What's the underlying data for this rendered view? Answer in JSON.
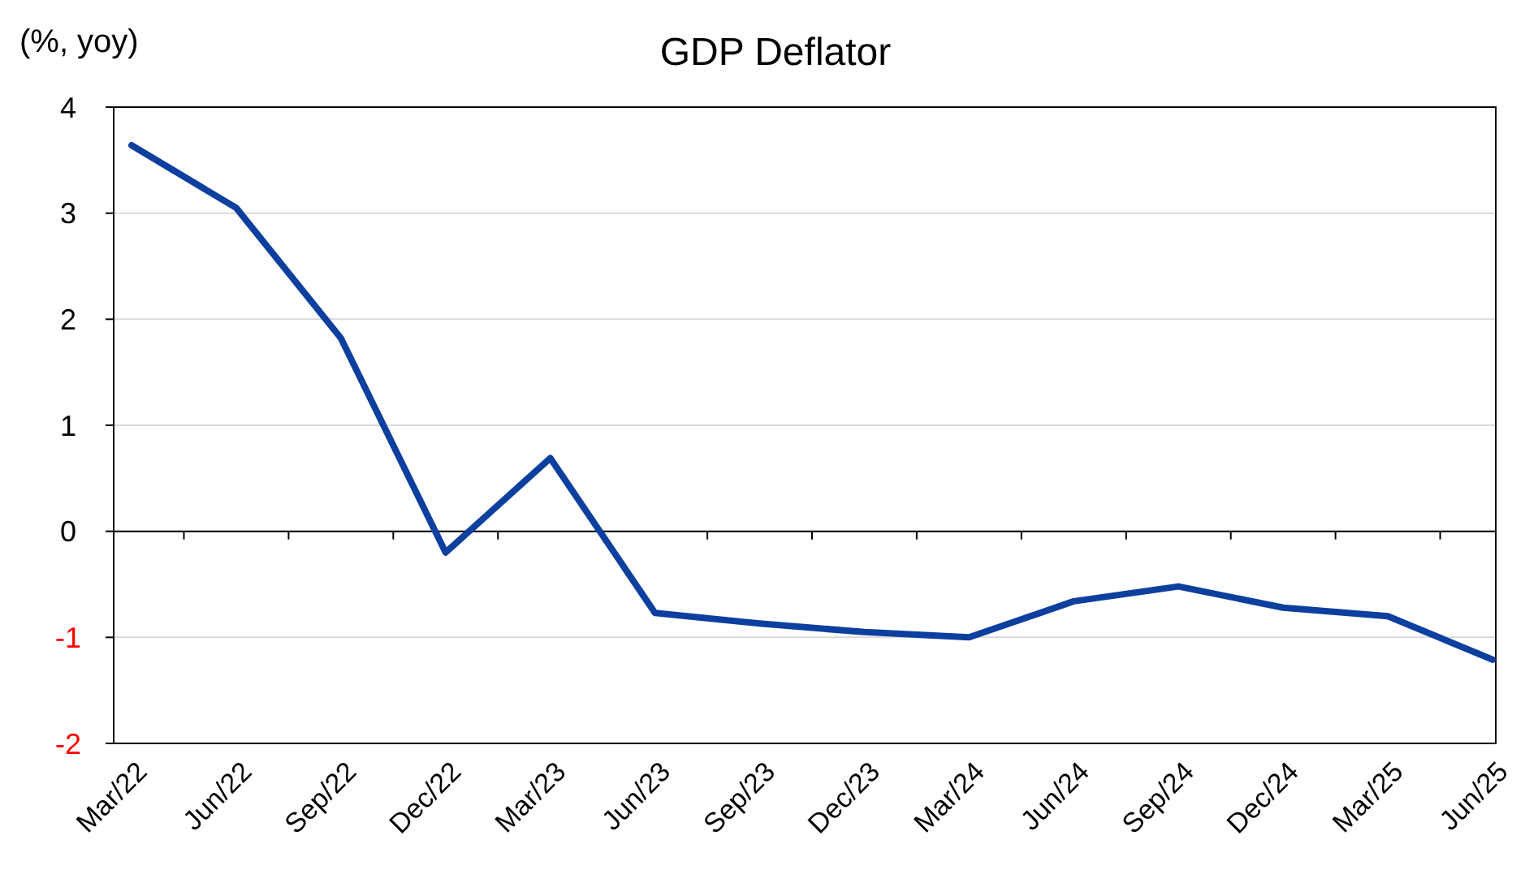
{
  "chart_data": {
    "type": "line",
    "title": "GDP Deflator",
    "ylabel": "(%, yoy)",
    "categories": [
      "Mar/22",
      "Jun/22",
      "Sep/22",
      "Dec/22",
      "Mar/23",
      "Jun/23",
      "Sep/23",
      "Dec/23",
      "Mar/24",
      "Jun/24",
      "Sep/24",
      "Dec/24",
      "Mar/25",
      "Jun/25"
    ],
    "series": [
      {
        "color": "#0d3f9f",
        "values": [
          3.64,
          3.05,
          1.82,
          -0.2,
          0.69,
          -0.77,
          -0.87,
          -0.95,
          -1.0,
          -0.66,
          -0.52,
          -0.72,
          -0.8,
          -1.21
        ]
      }
    ],
    "ylim": [
      -2,
      4
    ],
    "yticks": [
      -2,
      -1,
      0,
      1,
      2,
      3,
      4
    ],
    "grid": "y",
    "marker": "none",
    "line_style": "solid"
  }
}
